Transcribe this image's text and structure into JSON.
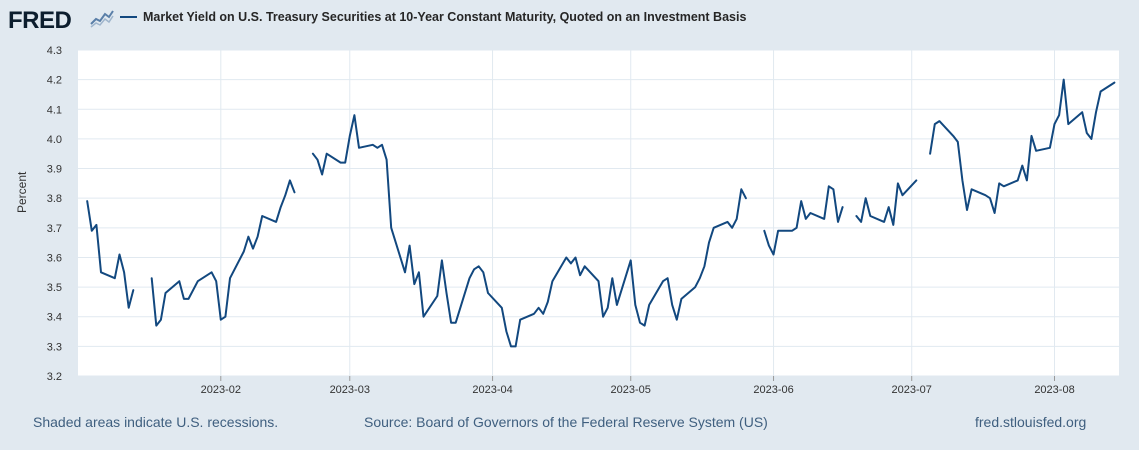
{
  "logo": {
    "text": "FRED",
    "icon": "sparkline-icon"
  },
  "chart_data": {
    "type": "line",
    "title": "Market Yield on U.S. Treasury Securities at 10-Year Constant Maturity, Quoted on an Investment Basis",
    "xlabel": "",
    "ylabel": "Percent",
    "ylim": [
      3.2,
      4.3
    ],
    "yticks": [
      "3.2",
      "3.3",
      "3.4",
      "3.5",
      "3.6",
      "3.7",
      "3.8",
      "3.9",
      "4.0",
      "4.1",
      "4.2",
      "4.3"
    ],
    "xlim_days": [
      0,
      226
    ],
    "xticks": [
      {
        "label": "2023-02",
        "day": 31
      },
      {
        "label": "2023-03",
        "day": 59
      },
      {
        "label": "2023-04",
        "day": 90
      },
      {
        "label": "2023-05",
        "day": 120
      },
      {
        "label": "2023-06",
        "day": 151
      },
      {
        "label": "2023-07",
        "day": 181
      },
      {
        "label": "2023-08",
        "day": 212
      }
    ],
    "grid": true,
    "legend": "top-left",
    "x_unit": "days since 2023-01-01",
    "series": [
      {
        "name": "Market Yield on U.S. Treasury Securities at 10-Year Constant Maturity, Quoted on an Investment Basis",
        "color": "#12487f",
        "segments": [
          [
            [
              2,
              3.79
            ],
            [
              3,
              3.69
            ],
            [
              4,
              3.71
            ],
            [
              5,
              3.55
            ],
            [
              8,
              3.53
            ],
            [
              9,
              3.61
            ],
            [
              10,
              3.55
            ],
            [
              11,
              3.43
            ],
            [
              12,
              3.49
            ]
          ],
          [
            [
              16,
              3.53
            ],
            [
              17,
              3.37
            ],
            [
              18,
              3.39
            ],
            [
              19,
              3.48
            ],
            [
              22,
              3.52
            ],
            [
              23,
              3.46
            ],
            [
              24,
              3.46
            ],
            [
              26,
              3.52
            ],
            [
              29,
              3.55
            ],
            [
              30,
              3.52
            ],
            [
              31,
              3.39
            ],
            [
              32,
              3.4
            ],
            [
              33,
              3.53
            ],
            [
              36,
              3.62
            ],
            [
              37,
              3.67
            ],
            [
              38,
              3.63
            ],
            [
              39,
              3.67
            ],
            [
              40,
              3.74
            ],
            [
              43,
              3.72
            ],
            [
              44,
              3.77
            ],
            [
              45,
              3.81
            ],
            [
              46,
              3.86
            ],
            [
              47,
              3.82
            ]
          ],
          [
            [
              51,
              3.95
            ],
            [
              52,
              3.93
            ],
            [
              53,
              3.88
            ],
            [
              54,
              3.95
            ],
            [
              57,
              3.92
            ],
            [
              58,
              3.92
            ],
            [
              59,
              4.01
            ],
            [
              60,
              4.08
            ],
            [
              61,
              3.97
            ],
            [
              64,
              3.98
            ],
            [
              65,
              3.97
            ],
            [
              66,
              3.98
            ],
            [
              67,
              3.93
            ],
            [
              68,
              3.7
            ],
            [
              71,
              3.55
            ],
            [
              72,
              3.64
            ],
            [
              73,
              3.51
            ],
            [
              74,
              3.55
            ],
            [
              75,
              3.4
            ],
            [
              78,
              3.47
            ],
            [
              79,
              3.59
            ],
            [
              80,
              3.48
            ],
            [
              81,
              3.38
            ],
            [
              82,
              3.38
            ],
            [
              85,
              3.53
            ],
            [
              86,
              3.56
            ],
            [
              87,
              3.57
            ],
            [
              88,
              3.55
            ],
            [
              89,
              3.48
            ],
            [
              92,
              3.43
            ],
            [
              93,
              3.35
            ],
            [
              94,
              3.3
            ],
            [
              95,
              3.3
            ],
            [
              96,
              3.39
            ],
            [
              99,
              3.41
            ],
            [
              100,
              3.43
            ],
            [
              101,
              3.41
            ],
            [
              102,
              3.45
            ],
            [
              103,
              3.52
            ],
            [
              106,
              3.6
            ],
            [
              107,
              3.58
            ],
            [
              108,
              3.6
            ],
            [
              109,
              3.54
            ],
            [
              110,
              3.57
            ],
            [
              113,
              3.52
            ],
            [
              114,
              3.4
            ],
            [
              115,
              3.43
            ],
            [
              116,
              3.53
            ],
            [
              117,
              3.44
            ],
            [
              120,
              3.59
            ],
            [
              121,
              3.44
            ],
            [
              122,
              3.38
            ],
            [
              123,
              3.37
            ],
            [
              124,
              3.44
            ],
            [
              127,
              3.52
            ],
            [
              128,
              3.53
            ],
            [
              129,
              3.44
            ],
            [
              130,
              3.39
            ],
            [
              131,
              3.46
            ],
            [
              134,
              3.5
            ],
            [
              135,
              3.53
            ],
            [
              136,
              3.57
            ],
            [
              137,
              3.65
            ],
            [
              138,
              3.7
            ],
            [
              141,
              3.72
            ],
            [
              142,
              3.7
            ],
            [
              143,
              3.73
            ],
            [
              144,
              3.83
            ],
            [
              145,
              3.8
            ]
          ],
          [
            [
              149,
              3.69
            ],
            [
              150,
              3.64
            ],
            [
              151,
              3.61
            ],
            [
              152,
              3.69
            ],
            [
              155,
              3.69
            ],
            [
              156,
              3.7
            ],
            [
              157,
              3.79
            ],
            [
              158,
              3.73
            ],
            [
              159,
              3.75
            ],
            [
              162,
              3.73
            ],
            [
              163,
              3.84
            ],
            [
              164,
              3.83
            ],
            [
              165,
              3.72
            ],
            [
              166,
              3.77
            ]
          ],
          [
            [
              169,
              3.74
            ],
            [
              170,
              3.72
            ],
            [
              171,
              3.8
            ],
            [
              172,
              3.74
            ],
            [
              175,
              3.72
            ],
            [
              176,
              3.77
            ],
            [
              177,
              3.71
            ],
            [
              178,
              3.85
            ],
            [
              179,
              3.81
            ],
            [
              182,
              3.86
            ]
          ],
          [
            [
              185,
              3.95
            ],
            [
              186,
              4.05
            ],
            [
              187,
              4.06
            ],
            [
              190,
              4.01
            ],
            [
              191,
              3.99
            ],
            [
              192,
              3.86
            ],
            [
              193,
              3.76
            ],
            [
              194,
              3.83
            ],
            [
              197,
              3.81
            ],
            [
              198,
              3.8
            ],
            [
              199,
              3.75
            ],
            [
              200,
              3.85
            ],
            [
              201,
              3.84
            ],
            [
              204,
              3.86
            ],
            [
              205,
              3.91
            ],
            [
              206,
              3.86
            ],
            [
              207,
              4.01
            ],
            [
              208,
              3.96
            ],
            [
              211,
              3.97
            ],
            [
              212,
              4.05
            ],
            [
              213,
              4.08
            ],
            [
              214,
              4.2
            ],
            [
              215,
              4.05
            ],
            [
              218,
              4.09
            ],
            [
              219,
              4.02
            ],
            [
              220,
              4.0
            ],
            [
              221,
              4.09
            ],
            [
              222,
              4.16
            ],
            [
              225,
              4.19
            ]
          ]
        ]
      }
    ]
  },
  "footer": {
    "recessions": "Shaded areas indicate U.S. recessions.",
    "source": "Source: Board of Governors of the Federal Reserve System (US)",
    "site": "fred.stlouisfed.org"
  }
}
